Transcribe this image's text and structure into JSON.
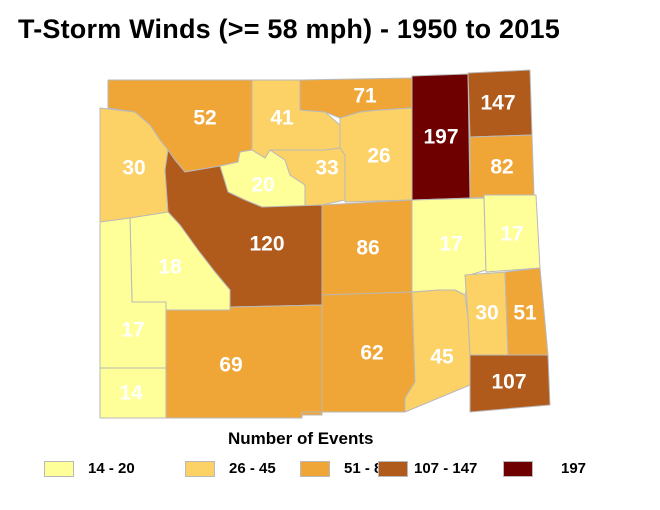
{
  "title": "T-Storm Winds (>= 58 mph) - 1950 to 2015",
  "legend": {
    "title": "Number of Events",
    "classes": [
      {
        "label": "14 - 20",
        "color": "#ffff99"
      },
      {
        "label": "26 - 45",
        "color": "#fcd266"
      },
      {
        "label": "51 - 86",
        "color": "#f0a637"
      },
      {
        "label": "107 - 147",
        "color": "#b05a1c"
      },
      {
        "label": "197",
        "color": "#6e0000"
      }
    ]
  },
  "counties": [
    {
      "value": "52"
    },
    {
      "value": "41"
    },
    {
      "value": "71"
    },
    {
      "value": "197"
    },
    {
      "value": "147"
    },
    {
      "value": "30"
    },
    {
      "value": "20"
    },
    {
      "value": "33"
    },
    {
      "value": "26"
    },
    {
      "value": "82"
    },
    {
      "value": "120"
    },
    {
      "value": "86"
    },
    {
      "value": "17"
    },
    {
      "value": "17"
    },
    {
      "value": "18"
    },
    {
      "value": "30"
    },
    {
      "value": "51"
    },
    {
      "value": "17"
    },
    {
      "value": "69"
    },
    {
      "value": "62"
    },
    {
      "value": "45"
    },
    {
      "value": "107"
    },
    {
      "value": "14"
    }
  ]
}
